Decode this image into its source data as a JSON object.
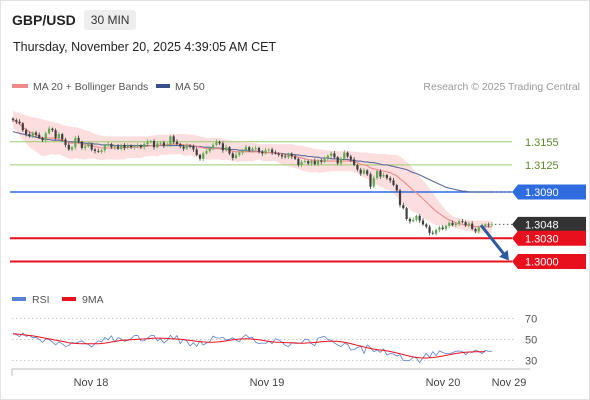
{
  "header": {
    "symbol": "GBP/USD",
    "timeframe": "30 MIN"
  },
  "datetime": "Thursday, November 20, 2025 4:39:05 AM CET",
  "legend": {
    "ma20": "MA 20 + Bollinger Bands",
    "ma50": "MA 50",
    "credit": "Research © 2025 Trading Central"
  },
  "rsi_legend": {
    "rsi": "RSI",
    "ma": "9MA"
  },
  "colors": {
    "bull": "#5dab4f",
    "bear": "#3f3f3f",
    "ma20": "#ef8a8a",
    "band": "#fbd6d6",
    "ma50": "#5b6b9a",
    "support": "#e8101c",
    "pivot": "#2f6ce0",
    "resistance": "#9ccb6f",
    "current": "#333333",
    "rsi": "#5a7fd6",
    "rsi_ma": "#e8101c",
    "arrow": "#2c5aa0"
  },
  "chart_data": [
    {
      "type": "candlestick",
      "title": "GBP/USD",
      "interval": "30 MIN",
      "x_labels": [
        "Nov 18",
        "Nov 19",
        "Nov 20",
        "Nov 29"
      ],
      "ylim": [
        1.2976,
        1.3213
      ],
      "close": [
        1.3183,
        1.3181,
        1.3179,
        1.317,
        1.3165,
        1.3162,
        1.3167,
        1.3164,
        1.316,
        1.3157,
        1.3166,
        1.3172,
        1.317,
        1.316,
        1.3165,
        1.3158,
        1.3151,
        1.3145,
        1.3148,
        1.316,
        1.3155,
        1.3147,
        1.3149,
        1.3152,
        1.3145,
        1.3143,
        1.3142,
        1.3144,
        1.315,
        1.3152,
        1.3148,
        1.3149,
        1.3146,
        1.3151,
        1.3147,
        1.315,
        1.3148,
        1.3149,
        1.315,
        1.3148,
        1.3152,
        1.3155,
        1.3156,
        1.3148,
        1.3153,
        1.3154,
        1.315,
        1.3151,
        1.3162,
        1.3155,
        1.3152,
        1.3149,
        1.3146,
        1.315,
        1.3149,
        1.3145,
        1.3138,
        1.3133,
        1.314,
        1.3143,
        1.3147,
        1.3151,
        1.3155,
        1.3153,
        1.3144,
        1.3148,
        1.314,
        1.3134,
        1.3138,
        1.3141,
        1.3143,
        1.3148,
        1.3144,
        1.3146,
        1.3147,
        1.3142,
        1.314,
        1.3144,
        1.3145,
        1.3141,
        1.314,
        1.3138,
        1.3136,
        1.3135,
        1.3139,
        1.3136,
        1.3133,
        1.3125,
        1.3129,
        1.313,
        1.3127,
        1.313,
        1.3126,
        1.3131,
        1.3129,
        1.3133,
        1.3137,
        1.314,
        1.3135,
        1.3127,
        1.3133,
        1.3141,
        1.3136,
        1.3132,
        1.3125,
        1.3119,
        1.3114,
        1.3118,
        1.3113,
        1.3097,
        1.3108,
        1.3117,
        1.311,
        1.3112,
        1.3108,
        1.3105,
        1.3099,
        1.3092,
        1.3073,
        1.3069,
        1.3055,
        1.3052,
        1.3054,
        1.3059,
        1.3053,
        1.3048,
        1.3045,
        1.3037,
        1.3036,
        1.3041,
        1.3044,
        1.3042,
        1.3046,
        1.305,
        1.3047,
        1.3049,
        1.3052,
        1.3051,
        1.3047,
        1.3049,
        1.3042,
        1.3039,
        1.3044,
        1.3046,
        1.3048,
        1.3047,
        1.3048
      ],
      "ma20": [
        1.3184,
        1.3181,
        1.3178,
        1.3174,
        1.3171,
        1.3168,
        1.3166,
        1.3164,
        1.3162,
        1.316,
        1.316,
        1.316,
        1.316,
        1.3159,
        1.3159,
        1.3157,
        1.3156,
        1.3154,
        1.3153,
        1.3154,
        1.3153,
        1.3152,
        1.3151,
        1.3151,
        1.315,
        1.3149,
        1.3148,
        1.3147,
        1.3147,
        1.3147,
        1.3147,
        1.3147,
        1.3147,
        1.3147,
        1.3147,
        1.3148,
        1.3148,
        1.3148,
        1.3148,
        1.3148,
        1.3149,
        1.3149,
        1.315,
        1.315,
        1.315,
        1.3151,
        1.3151,
        1.3151,
        1.3152,
        1.3152,
        1.3152,
        1.3152,
        1.3151,
        1.3151,
        1.3151,
        1.315,
        1.3149,
        1.3148,
        1.3147,
        1.3146,
        1.3146,
        1.3146,
        1.3146,
        1.3146,
        1.3145,
        1.3145,
        1.3144,
        1.3143,
        1.3142,
        1.3142,
        1.3142,
        1.3142,
        1.3142,
        1.3142,
        1.3142,
        1.3142,
        1.3141,
        1.3141,
        1.3141,
        1.3141,
        1.3141,
        1.314,
        1.3139,
        1.3138,
        1.3138,
        1.3137,
        1.3136,
        1.3135,
        1.3134,
        1.3133,
        1.3132,
        1.3131,
        1.3131,
        1.313,
        1.313,
        1.313,
        1.313,
        1.313,
        1.313,
        1.313,
        1.313,
        1.313,
        1.313,
        1.313,
        1.3129,
        1.3128,
        1.3126,
        1.3125,
        1.3124,
        1.3121,
        1.312,
        1.3119,
        1.3118,
        1.3117,
        1.3116,
        1.3115,
        1.3113,
        1.3111,
        1.3107,
        1.3104,
        1.31,
        1.3096,
        1.3092,
        1.3089,
        1.3085,
        1.3081,
        1.3077,
        1.3073,
        1.3069,
        1.3065,
        1.3062,
        1.3059,
        1.3056,
        1.3054,
        1.3052,
        1.305,
        1.3049,
        1.3048,
        1.3047,
        1.3047,
        1.3046,
        1.3045,
        1.3045,
        1.3045,
        1.3045,
        1.3045,
        1.3045
      ],
      "ma20_upper": [
        1.3195,
        1.3193,
        1.3192,
        1.3191,
        1.3189,
        1.3188,
        1.3187,
        1.3186,
        1.3185,
        1.3184,
        1.3183,
        1.3182,
        1.3181,
        1.318,
        1.3179,
        1.3177,
        1.3176,
        1.3175,
        1.3174,
        1.3174,
        1.3173,
        1.3172,
        1.317,
        1.3169,
        1.3167,
        1.3165,
        1.3164,
        1.3163,
        1.3162,
        1.3162,
        1.3162,
        1.3162,
        1.3162,
        1.3162,
        1.3162,
        1.3162,
        1.3162,
        1.3162,
        1.3162,
        1.3162,
        1.3162,
        1.3162,
        1.3163,
        1.3163,
        1.3164,
        1.3164,
        1.3164,
        1.3164,
        1.3165,
        1.3165,
        1.3165,
        1.3165,
        1.3165,
        1.3165,
        1.3164,
        1.3164,
        1.3163,
        1.3162,
        1.3161,
        1.316,
        1.316,
        1.316,
        1.316,
        1.316,
        1.3159,
        1.3158,
        1.3157,
        1.3156,
        1.3155,
        1.3155,
        1.3154,
        1.3154,
        1.3154,
        1.3154,
        1.3153,
        1.3152,
        1.3152,
        1.3152,
        1.3152,
        1.3152,
        1.3152,
        1.3152,
        1.3152,
        1.3152,
        1.3152,
        1.3152,
        1.3151,
        1.315,
        1.315,
        1.3149,
        1.3148,
        1.3147,
        1.3146,
        1.3145,
        1.3145,
        1.3144,
        1.3144,
        1.3143,
        1.3143,
        1.3143,
        1.3143,
        1.3143,
        1.3143,
        1.3143,
        1.3142,
        1.3142,
        1.3141,
        1.3141,
        1.3141,
        1.314,
        1.314,
        1.3139,
        1.3139,
        1.3139,
        1.3139,
        1.3138,
        1.3138,
        1.3138,
        1.3136,
        1.3133,
        1.3129,
        1.3125,
        1.312,
        1.3115,
        1.311,
        1.3105,
        1.31,
        1.3094,
        1.3089,
        1.3083,
        1.3077,
        1.3071,
        1.3066,
        1.3062,
        1.3059,
        1.3057,
        1.3056,
        1.3055,
        1.3054,
        1.3054,
        1.3053,
        1.3053,
        1.3053,
        1.3053,
        1.3053,
        1.3053,
        1.3053
      ],
      "ma20_lower": [
        1.3173,
        1.3169,
        1.3164,
        1.3157,
        1.3153,
        1.3148,
        1.3145,
        1.3142,
        1.3139,
        1.3136,
        1.3137,
        1.3138,
        1.3139,
        1.3138,
        1.3139,
        1.3137,
        1.3136,
        1.3133,
        1.3132,
        1.3134,
        1.3133,
        1.3132,
        1.3132,
        1.3133,
        1.3133,
        1.3133,
        1.3132,
        1.3131,
        1.3132,
        1.3132,
        1.3132,
        1.3132,
        1.3132,
        1.3132,
        1.3132,
        1.3134,
        1.3134,
        1.3134,
        1.3134,
        1.3134,
        1.3136,
        1.3136,
        1.3137,
        1.3137,
        1.3136,
        1.3138,
        1.3138,
        1.3138,
        1.3139,
        1.3139,
        1.3139,
        1.3139,
        1.3137,
        1.3137,
        1.3138,
        1.3136,
        1.3135,
        1.3134,
        1.3133,
        1.3132,
        1.3132,
        1.3132,
        1.3132,
        1.3132,
        1.3131,
        1.3132,
        1.3131,
        1.313,
        1.3129,
        1.3129,
        1.313,
        1.313,
        1.313,
        1.313,
        1.3131,
        1.3132,
        1.313,
        1.313,
        1.313,
        1.313,
        1.313,
        1.3128,
        1.3126,
        1.3124,
        1.3124,
        1.3122,
        1.3121,
        1.312,
        1.3118,
        1.3117,
        1.3116,
        1.3115,
        1.3116,
        1.3115,
        1.3115,
        1.3116,
        1.3116,
        1.3117,
        1.3117,
        1.3117,
        1.3117,
        1.3117,
        1.3117,
        1.3117,
        1.3116,
        1.3114,
        1.3111,
        1.3109,
        1.3107,
        1.3102,
        1.31,
        1.3099,
        1.3097,
        1.3095,
        1.3093,
        1.3092,
        1.3088,
        1.3084,
        1.3078,
        1.3075,
        1.3071,
        1.3067,
        1.3064,
        1.3063,
        1.306,
        1.3057,
        1.3054,
        1.3052,
        1.3049,
        1.3047,
        1.3047,
        1.3047,
        1.3046,
        1.3046,
        1.3045,
        1.3043,
        1.3042,
        1.3041,
        1.304,
        1.304,
        1.3039,
        1.3037,
        1.3037,
        1.3037,
        1.3037,
        1.3037,
        1.3037
      ],
      "ma50": [
        1.3168,
        1.3167,
        1.3166,
        1.3165,
        1.3164,
        1.3163,
        1.3162,
        1.3161,
        1.316,
        1.3159,
        1.3158,
        1.3158,
        1.3157,
        1.3157,
        1.3157,
        1.3156,
        1.3156,
        1.3155,
        1.3155,
        1.3155,
        1.3154,
        1.3154,
        1.3153,
        1.3153,
        1.3153,
        1.3152,
        1.3152,
        1.3151,
        1.3151,
        1.3151,
        1.3151,
        1.315,
        1.315,
        1.315,
        1.315,
        1.315,
        1.315,
        1.315,
        1.315,
        1.315,
        1.315,
        1.315,
        1.315,
        1.315,
        1.315,
        1.315,
        1.315,
        1.315,
        1.315,
        1.315,
        1.315,
        1.315,
        1.315,
        1.315,
        1.3149,
        1.3149,
        1.3149,
        1.3149,
        1.3148,
        1.3148,
        1.3148,
        1.3147,
        1.3147,
        1.3147,
        1.3146,
        1.3146,
        1.3145,
        1.3145,
        1.3145,
        1.3144,
        1.3144,
        1.3144,
        1.3143,
        1.3143,
        1.3143,
        1.3142,
        1.3142,
        1.3141,
        1.3141,
        1.3141,
        1.314,
        1.314,
        1.314,
        1.3139,
        1.3139,
        1.3139,
        1.3138,
        1.3138,
        1.3137,
        1.3137,
        1.3136,
        1.3136,
        1.3135,
        1.3135,
        1.3134,
        1.3134,
        1.3134,
        1.3133,
        1.3133,
        1.3133,
        1.3132,
        1.3132,
        1.3132,
        1.3131,
        1.3131,
        1.313,
        1.313,
        1.3129,
        1.3129,
        1.3128,
        1.3128,
        1.3127,
        1.3126,
        1.3125,
        1.3125,
        1.3124,
        1.3123,
        1.3122,
        1.3121,
        1.312,
        1.3119,
        1.3117,
        1.3115,
        1.3114,
        1.3112,
        1.311,
        1.3108,
        1.3106,
        1.3104,
        1.3102,
        1.31,
        1.3098,
        1.3096,
        1.3095,
        1.3094,
        1.3093,
        1.3092,
        1.3091,
        1.3091,
        1.309,
        1.309,
        1.309,
        1.309,
        1.309,
        1.309,
        1.309,
        1.309
      ],
      "levels": [
        {
          "label": "1.3155",
          "value": 1.3155,
          "kind": "resistance"
        },
        {
          "label": "1.3125",
          "value": 1.3125,
          "kind": "resistance"
        },
        {
          "label": "1.3090",
          "value": 1.309,
          "kind": "pivot"
        },
        {
          "label": "1.3048",
          "value": 1.3048,
          "kind": "current"
        },
        {
          "label": "1.3030",
          "value": 1.303,
          "kind": "support"
        },
        {
          "label": "1.3000",
          "value": 1.3,
          "kind": "support"
        }
      ],
      "forecast_arrow": {
        "from": 1.3047,
        "to": 1.3,
        "direction": "down"
      }
    },
    {
      "type": "line",
      "indicator": "RSI",
      "ylim": [
        22,
        78
      ],
      "yticks": [
        70,
        50,
        30
      ],
      "rsi": [
        55.7,
        54.6,
        52.8,
        56.3,
        52.9,
        53.9,
        51.6,
        52.2,
        50.0,
        47.2,
        50.4,
        50.0,
        47.5,
        44.8,
        47.8,
        45.9,
        43.4,
        44.3,
        47.1,
        46.3,
        47.6,
        48.9,
        46.3,
        45.3,
        43.0,
        46.1,
        48.8,
        47.7,
        51.9,
        49.6,
        53.5,
        47.7,
        51.8,
        50.6,
        48.3,
        49.1,
        50.8,
        53.8,
        54.0,
        48.8,
        48.7,
        51.5,
        53.6,
        53.9,
        48.8,
        50.9,
        46.6,
        49.1,
        54.1,
        50.1,
        53.8,
        46.0,
        50.3,
        48.5,
        43.8,
        47.0,
        43.4,
        48.9,
        44.7,
        46.7,
        48.0,
        53.2,
        51.5,
        51.3,
        52.0,
        49.4,
        50.3,
        51.7,
        49.5,
        47.8,
        52.1,
        54.6,
        51.5,
        52.2,
        47.4,
        46.1,
        46.7,
        46.3,
        48.6,
        46.0,
        50.8,
        49.5,
        47.4,
        44.4,
        43.3,
        47.0,
        46.4,
        46.3,
        46.8,
        50.3,
        49.8,
        46.0,
        44.2,
        51.3,
        52.2,
        52.9,
        49.9,
        49.4,
        46.8,
        44.8,
        43.4,
        46.2,
        45.5,
        40.0,
        40.5,
        42.3,
        43.6,
        36.7,
        44.9,
        42.2,
        38.3,
        40.1,
        37.8,
        41.2,
        35.3,
        36.7,
        36.2,
        34.3,
        35.5,
        30.1,
        29.9,
        30.2,
        33.3,
        32.5,
        28.0,
        32.7,
        36.8,
        33.0,
        38.5,
        34.6,
        39.2,
        37.7,
        36.6,
        36.8,
        37.4,
        38.8,
        39.1,
        38.7,
        35.5,
        38.3,
        37.7,
        40.0,
        38.5,
        36.5,
        39.7,
        38.7,
        38.9
      ],
      "rsi_ma": [
        55.5,
        55.2,
        54.9,
        54.6,
        54.2,
        53.8,
        53.4,
        52.9,
        52.4,
        51.8,
        51.2,
        50.6,
        50.0,
        49.4,
        48.8,
        48.2,
        47.6,
        47.0,
        46.6,
        46.3,
        46.1,
        46.0,
        45.9,
        45.9,
        45.9,
        45.9,
        46.0,
        46.2,
        46.6,
        47.1,
        47.6,
        48.2,
        48.7,
        49.1,
        49.4,
        49.6,
        49.8,
        50.0,
        50.2,
        50.4,
        50.6,
        50.8,
        51.0,
        51.2,
        51.3,
        51.3,
        51.2,
        51.0,
        50.8,
        50.6,
        50.4,
        50.2,
        49.9,
        49.5,
        49.1,
        48.7,
        48.3,
        48.0,
        47.7,
        47.5,
        47.4,
        47.4,
        47.6,
        47.9,
        48.3,
        48.7,
        49.2,
        49.7,
        50.1,
        50.4,
        50.6,
        50.7,
        50.6,
        50.4,
        50.1,
        49.7,
        49.2,
        48.7,
        48.2,
        47.8,
        47.5,
        47.3,
        47.2,
        47.1,
        47.0,
        46.9,
        46.8,
        46.6,
        46.5,
        46.6,
        46.8,
        47.0,
        47.2,
        47.5,
        47.8,
        48.1,
        48.3,
        48.4,
        48.4,
        48.2,
        47.9,
        47.4,
        46.8,
        46.1,
        45.3,
        44.5,
        43.7,
        42.9,
        42.2,
        41.5,
        40.9,
        40.4,
        40.0,
        39.7,
        39.2,
        38.6,
        37.9,
        37.2,
        36.5,
        35.7,
        34.9,
        34.1,
        33.5,
        33.0,
        32.6,
        32.4,
        32.4,
        32.6,
        32.9,
        33.3,
        33.8,
        34.3,
        34.9,
        35.5,
        36.1,
        36.7,
        37.2,
        37.6,
        37.9,
        38.1,
        38.2,
        38.3,
        38.4,
        38.4,
        38.5
      ]
    }
  ]
}
